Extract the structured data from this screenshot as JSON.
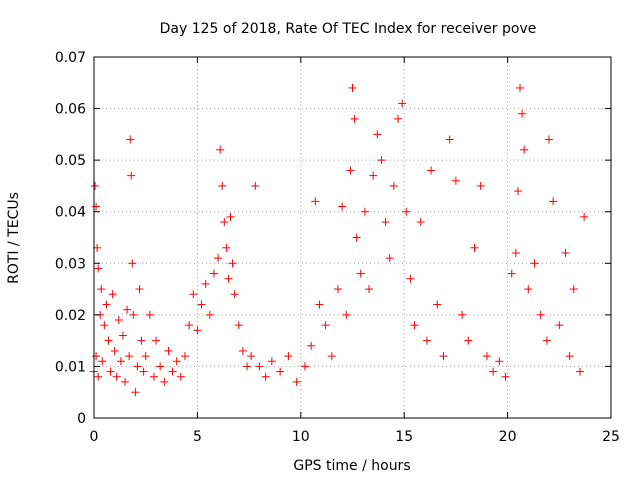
{
  "chart_data": {
    "type": "scatter",
    "title": "Day 125 of 2018, Rate Of TEC Index for receiver pove",
    "xlabel": "GPS time / hours",
    "ylabel": "ROTI / TECUs",
    "xlim": [
      0,
      25
    ],
    "ylim": [
      0,
      0.07
    ],
    "x_ticks": [
      "0",
      "5",
      "10",
      "15",
      "20",
      "25"
    ],
    "y_ticks": [
      "0",
      "0.01",
      "0.02",
      "0.03",
      "0.04",
      "0.05",
      "0.06",
      "0.07"
    ],
    "x_tick_values": [
      0,
      5,
      10,
      15,
      20,
      25
    ],
    "y_tick_values": [
      0,
      0.01,
      0.02,
      0.03,
      0.04,
      0.05,
      0.06,
      0.07
    ],
    "grid": true,
    "marker": "plus",
    "marker_color": "#ff0000",
    "series": [
      {
        "points": [
          [
            0.0,
            0.009
          ],
          [
            0.05,
            0.045
          ],
          [
            0.1,
            0.041
          ],
          [
            0.1,
            0.012
          ],
          [
            0.15,
            0.033
          ],
          [
            0.2,
            0.029
          ],
          [
            0.2,
            0.008
          ],
          [
            0.3,
            0.02
          ],
          [
            0.35,
            0.025
          ],
          [
            0.4,
            0.011
          ],
          [
            0.5,
            0.018
          ],
          [
            0.6,
            0.022
          ],
          [
            0.7,
            0.015
          ],
          [
            0.8,
            0.009
          ],
          [
            0.9,
            0.024
          ],
          [
            1.0,
            0.013
          ],
          [
            1.1,
            0.008
          ],
          [
            1.2,
            0.019
          ],
          [
            1.3,
            0.011
          ],
          [
            1.4,
            0.016
          ],
          [
            1.5,
            0.007
          ],
          [
            1.6,
            0.021
          ],
          [
            1.7,
            0.012
          ],
          [
            1.75,
            0.054
          ],
          [
            1.8,
            0.047
          ],
          [
            1.85,
            0.03
          ],
          [
            1.9,
            0.02
          ],
          [
            2.0,
            0.005
          ],
          [
            2.1,
            0.01
          ],
          [
            2.2,
            0.025
          ],
          [
            2.3,
            0.015
          ],
          [
            2.4,
            0.009
          ],
          [
            2.5,
            0.012
          ],
          [
            2.7,
            0.02
          ],
          [
            2.9,
            0.008
          ],
          [
            3.0,
            0.015
          ],
          [
            3.2,
            0.01
          ],
          [
            3.4,
            0.007
          ],
          [
            3.6,
            0.013
          ],
          [
            3.8,
            0.009
          ],
          [
            4.0,
            0.011
          ],
          [
            4.2,
            0.008
          ],
          [
            4.4,
            0.012
          ],
          [
            4.6,
            0.018
          ],
          [
            4.8,
            0.024
          ],
          [
            5.0,
            0.017
          ],
          [
            5.2,
            0.022
          ],
          [
            5.4,
            0.026
          ],
          [
            5.6,
            0.02
          ],
          [
            5.8,
            0.028
          ],
          [
            6.0,
            0.031
          ],
          [
            6.1,
            0.052
          ],
          [
            6.2,
            0.045
          ],
          [
            6.3,
            0.038
          ],
          [
            6.4,
            0.033
          ],
          [
            6.5,
            0.027
          ],
          [
            6.6,
            0.039
          ],
          [
            6.7,
            0.03
          ],
          [
            6.8,
            0.024
          ],
          [
            7.0,
            0.018
          ],
          [
            7.2,
            0.013
          ],
          [
            7.4,
            0.01
          ],
          [
            7.6,
            0.012
          ],
          [
            7.8,
            0.045
          ],
          [
            8.0,
            0.01
          ],
          [
            8.3,
            0.008
          ],
          [
            8.6,
            0.011
          ],
          [
            9.0,
            0.009
          ],
          [
            9.4,
            0.012
          ],
          [
            9.8,
            0.007
          ],
          [
            10.2,
            0.01
          ],
          [
            10.5,
            0.014
          ],
          [
            10.7,
            0.042
          ],
          [
            10.9,
            0.022
          ],
          [
            11.2,
            0.018
          ],
          [
            11.5,
            0.012
          ],
          [
            11.8,
            0.025
          ],
          [
            12.0,
            0.041
          ],
          [
            12.2,
            0.02
          ],
          [
            12.4,
            0.048
          ],
          [
            12.5,
            0.064
          ],
          [
            12.6,
            0.058
          ],
          [
            12.7,
            0.035
          ],
          [
            12.9,
            0.028
          ],
          [
            13.1,
            0.04
          ],
          [
            13.3,
            0.025
          ],
          [
            13.5,
            0.047
          ],
          [
            13.7,
            0.055
          ],
          [
            13.9,
            0.05
          ],
          [
            14.1,
            0.038
          ],
          [
            14.3,
            0.031
          ],
          [
            14.5,
            0.045
          ],
          [
            14.7,
            0.058
          ],
          [
            14.9,
            0.061
          ],
          [
            15.1,
            0.04
          ],
          [
            15.3,
            0.027
          ],
          [
            15.5,
            0.018
          ],
          [
            15.8,
            0.038
          ],
          [
            16.1,
            0.015
          ],
          [
            16.3,
            0.048
          ],
          [
            16.6,
            0.022
          ],
          [
            16.9,
            0.012
          ],
          [
            17.2,
            0.054
          ],
          [
            17.5,
            0.046
          ],
          [
            17.8,
            0.02
          ],
          [
            18.1,
            0.015
          ],
          [
            18.4,
            0.033
          ],
          [
            18.7,
            0.045
          ],
          [
            19.0,
            0.012
          ],
          [
            19.3,
            0.009
          ],
          [
            19.6,
            0.011
          ],
          [
            19.9,
            0.008
          ],
          [
            20.2,
            0.028
          ],
          [
            20.4,
            0.032
          ],
          [
            20.5,
            0.044
          ],
          [
            20.6,
            0.064
          ],
          [
            20.7,
            0.059
          ],
          [
            20.8,
            0.052
          ],
          [
            21.0,
            0.025
          ],
          [
            21.3,
            0.03
          ],
          [
            21.6,
            0.02
          ],
          [
            21.9,
            0.015
          ],
          [
            22.0,
            0.054
          ],
          [
            22.2,
            0.042
          ],
          [
            22.5,
            0.018
          ],
          [
            22.8,
            0.032
          ],
          [
            23.0,
            0.012
          ],
          [
            23.2,
            0.025
          ],
          [
            23.5,
            0.009
          ],
          [
            23.7,
            0.039
          ]
        ]
      }
    ]
  }
}
